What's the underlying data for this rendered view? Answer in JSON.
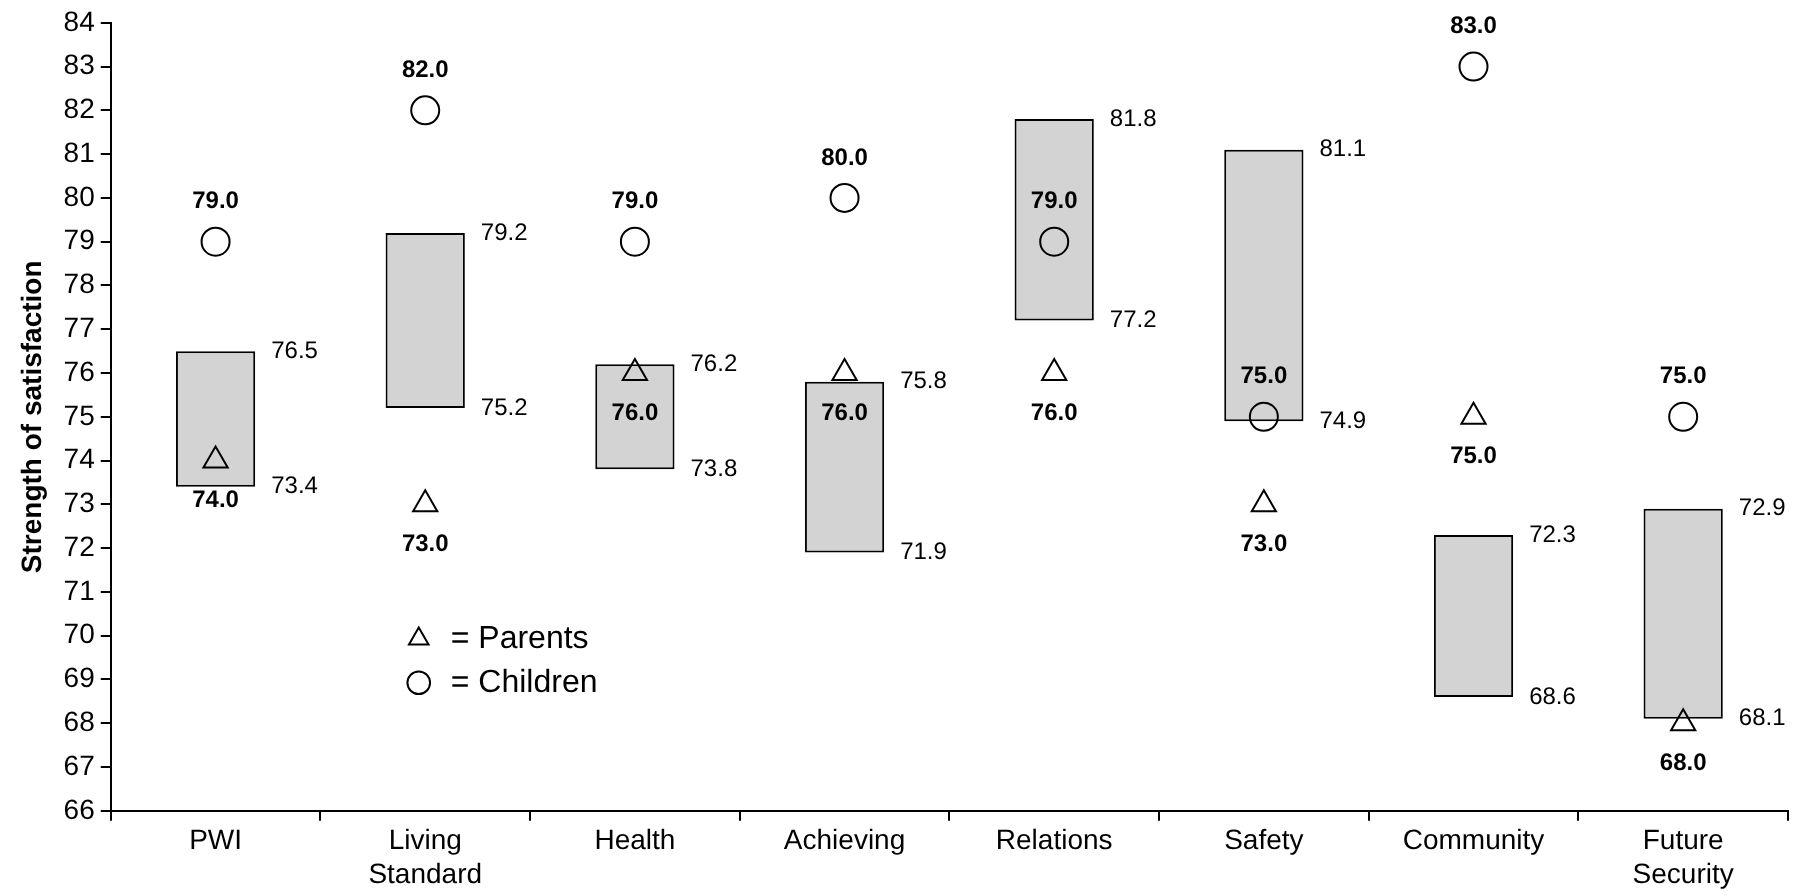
{
  "chart_data": {
    "type": "bar",
    "ylabel": "Strength of satisfaction",
    "categories": [
      "PWI",
      "Living Standard",
      "Health",
      "Achieving",
      "Relations",
      "Safety",
      "Community",
      "Future Security"
    ],
    "base": [
      73.4,
      75.2,
      73.8,
      71.9,
      77.2,
      74.9,
      68.6,
      68.1
    ],
    "values": [
      3.1,
      4.0,
      2.4,
      3.9,
      4.6,
      6.2,
      3.7,
      4.8
    ],
    "color": "#d3d3d3",
    "series": [
      {
        "name": "= Parents",
        "type": "scatter",
        "marker": "triangle",
        "color": "#000000",
        "x": [
          "PWI",
          "Living Standard",
          "Health",
          "Achieving",
          "Relations",
          "Safety",
          "Community",
          "Future Security"
        ],
        "values": [
          74,
          73,
          76,
          76,
          76,
          73,
          75,
          68
        ],
        "value_labels": [
          "74.0",
          "73.0",
          "76.0",
          "76.0",
          "76.0",
          "73.0",
          "75.0",
          "68.0"
        ]
      },
      {
        "name": "= Children",
        "type": "scatter",
        "marker": "circle",
        "color": "#000000",
        "x": [
          "PWI",
          "Living Standard",
          "Health",
          "Achieving",
          "Relations",
          "Safety",
          "Community",
          "Future Security"
        ],
        "values": [
          79,
          82,
          79,
          80,
          79,
          75,
          83,
          75
        ],
        "value_labels": [
          "79.0",
          "82.0",
          "79.0",
          "80.0",
          "79.0",
          "75.0",
          "83.0",
          "75.0"
        ]
      }
    ],
    "annotations": [
      {
        "text": "76.5",
        "x": "PWI",
        "y": 76.5
      },
      {
        "text": "73.4",
        "x": "PWI",
        "y": 73.4
      },
      {
        "text": "79.2",
        "x": "Living Standard",
        "y": 79.2
      },
      {
        "text": "75.2",
        "x": "Living Standard",
        "y": 75.2
      },
      {
        "text": "76.2",
        "x": "Health",
        "y": 76.2
      },
      {
        "text": "73.8",
        "x": "Health",
        "y": 73.8
      },
      {
        "text": "75.8",
        "x": "Achieving",
        "y": 75.8
      },
      {
        "text": "71.9",
        "x": "Achieving",
        "y": 71.9
      },
      {
        "text": "81.8",
        "x": "Relations",
        "y": 81.8
      },
      {
        "text": "77.2",
        "x": "Relations",
        "y": 77.2
      },
      {
        "text": "81.1",
        "x": "Safety",
        "y": 81.1
      },
      {
        "text": "74.9",
        "x": "Safety",
        "y": 74.9
      },
      {
        "text": "72.3",
        "x": "Community",
        "y": 72.3
      },
      {
        "text": "68.6",
        "x": "Community",
        "y": 68.6
      },
      {
        "text": "72.9",
        "x": "Future Security",
        "y": 72.9
      },
      {
        "text": "68.1",
        "x": "Future Security",
        "y": 68.1
      }
    ],
    "ylim": [
      66,
      84
    ],
    "yticks": [
      66,
      67,
      68,
      69,
      70,
      71,
      72,
      73,
      74,
      75,
      76,
      77,
      78,
      79,
      80,
      81,
      82,
      83,
      84
    ],
    "grid": false,
    "legend": "bottom left"
  }
}
